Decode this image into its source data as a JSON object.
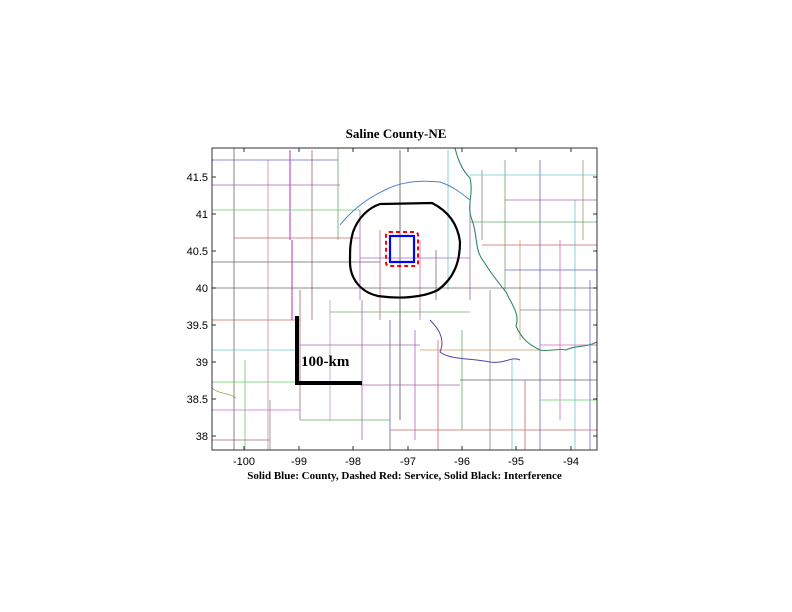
{
  "title": "Saline County-NE",
  "caption": "Solid Blue: County, Dashed Red: Service, Solid Black: Interference",
  "scale_bar_label": "100-km",
  "map": {
    "lon_ticks": [
      "-100",
      "-99",
      "-98",
      "-97",
      "-96",
      "-95",
      "-94"
    ],
    "lat_ticks": [
      "41.5",
      "41",
      "40.5",
      "40",
      "39.5",
      "39",
      "38.5",
      "38"
    ]
  },
  "legend_colors": {
    "county": "#0000ff",
    "service": "#ff0000",
    "interference": "#000000"
  }
}
